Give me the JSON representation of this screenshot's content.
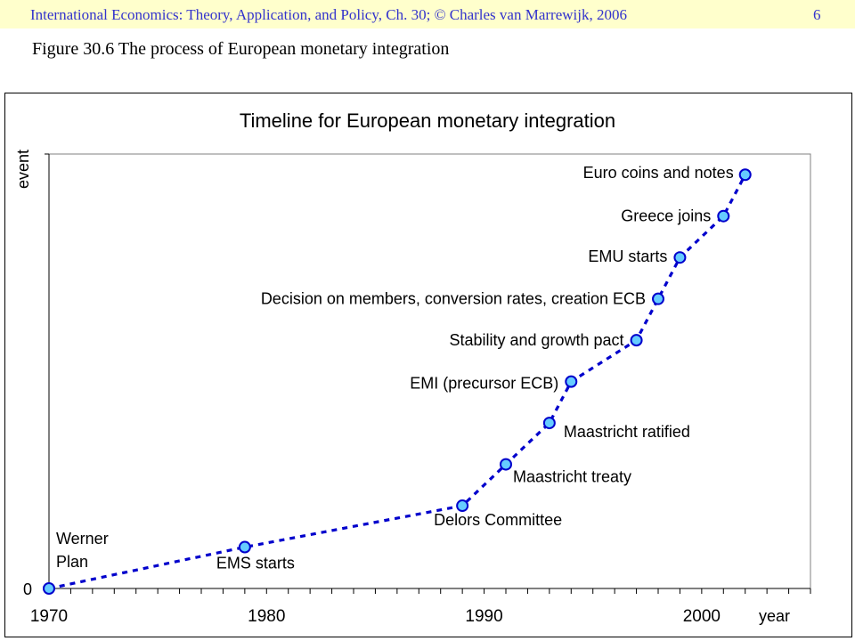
{
  "header": {
    "text": "International Economics: Theory, Application, and Policy, Ch. 30;  © Charles van Marrewijk, 2006",
    "page": "6"
  },
  "figure": {
    "caption": "Figure 30.6 The process of European monetary integration"
  },
  "colors": {
    "header_bg": "#ffffcc",
    "header_text": "#3333cc",
    "series": "#0000cc",
    "marker_fill": "#66ccff"
  },
  "chart_data": {
    "type": "line",
    "title": "Timeline for European monetary integration",
    "xlabel": "year",
    "ylabel": "event",
    "xlim": [
      1970,
      2005
    ],
    "ylim": [
      0,
      10.5
    ],
    "x_ticks": [
      "1970",
      "1980",
      "1990",
      "2000"
    ],
    "y_ticks": [
      "0"
    ],
    "grid": false,
    "points": [
      {
        "x": 1970,
        "y": 0,
        "label": "Werner Plan"
      },
      {
        "x": 1979,
        "y": 1,
        "label": "EMS starts"
      },
      {
        "x": 1989,
        "y": 2,
        "label": "Delors Committee"
      },
      {
        "x": 1991,
        "y": 3,
        "label": "Maastricht treaty"
      },
      {
        "x": 1993,
        "y": 4,
        "label": "Maastricht ratified"
      },
      {
        "x": 1994,
        "y": 5,
        "label": "EMI (precursor ECB)"
      },
      {
        "x": 1997,
        "y": 6,
        "label": "Stability and growth pact"
      },
      {
        "x": 1998,
        "y": 7,
        "label": "Decision on members, conversion rates, creation ECB"
      },
      {
        "x": 1999,
        "y": 8,
        "label": "EMU starts"
      },
      {
        "x": 2001,
        "y": 9,
        "label": "Greece joins"
      },
      {
        "x": 2002,
        "y": 10,
        "label": "Euro coins and notes"
      }
    ]
  }
}
